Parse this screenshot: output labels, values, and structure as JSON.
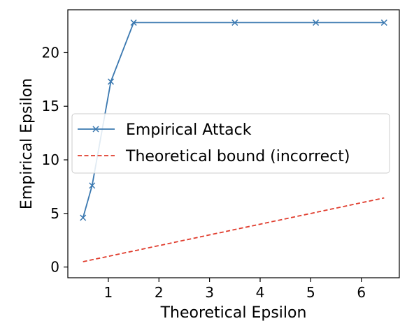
{
  "chart_data": {
    "type": "line",
    "title": "",
    "xlabel": "Theoretical Epsilon",
    "ylabel": "Empirical Epsilon",
    "xlim": [
      0.2,
      6.75
    ],
    "ylim": [
      -1.0,
      24.0
    ],
    "xticks": [
      1,
      2,
      3,
      4,
      5,
      6
    ],
    "yticks": [
      0,
      5,
      10,
      15,
      20
    ],
    "grid": false,
    "legend_position": "center-right",
    "series": [
      {
        "name": "Empirical Attack",
        "color": "#3a78b0",
        "style": "solid",
        "marker": "x",
        "x": [
          0.5,
          0.68,
          1.05,
          1.5,
          3.5,
          5.1,
          6.45
        ],
        "y": [
          4.6,
          7.6,
          17.3,
          22.8,
          22.8,
          22.8,
          22.8
        ]
      },
      {
        "name": "Theoretical bound (incorrect)",
        "color": "#e03c2d",
        "style": "dashed",
        "marker": "none",
        "x": [
          0.5,
          6.45
        ],
        "y": [
          0.5,
          6.45
        ]
      }
    ]
  }
}
